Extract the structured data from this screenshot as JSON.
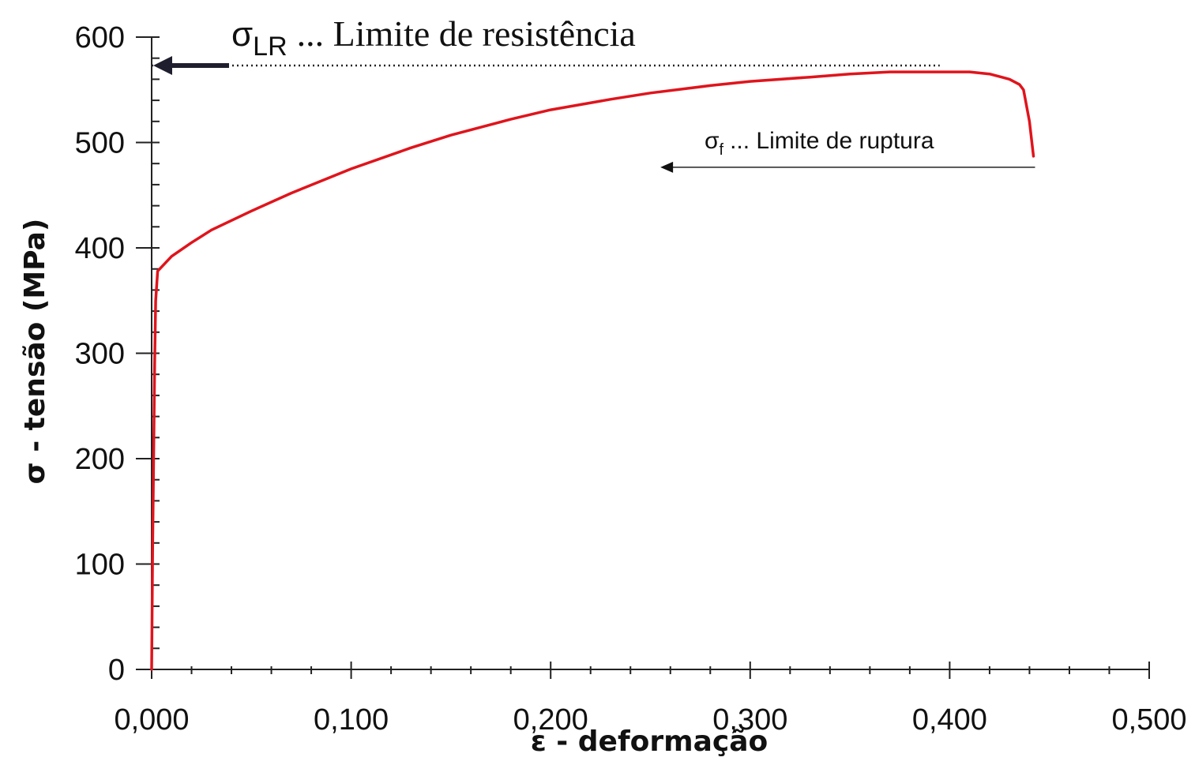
{
  "chart_data": {
    "type": "line",
    "xlabel": "ε - deformação",
    "ylabel": "σ - tensão (MPa)",
    "xlim": [
      0,
      0.5
    ],
    "ylim": [
      0,
      600
    ],
    "x_ticks": [
      "0,000",
      "0,100",
      "0,200",
      "0,300",
      "0,400",
      "0,500"
    ],
    "x_tick_values": [
      0,
      0.1,
      0.2,
      0.3,
      0.4,
      0.5
    ],
    "y_ticks": [
      "0",
      "100",
      "200",
      "300",
      "400",
      "500",
      "600"
    ],
    "y_tick_values": [
      0,
      100,
      200,
      300,
      400,
      500,
      600
    ],
    "series": [
      {
        "color": "#e0141c",
        "x": [
          0,
          0.0005,
          0.001,
          0.0015,
          0.002,
          0.003,
          0.01,
          0.02,
          0.03,
          0.05,
          0.07,
          0.1,
          0.13,
          0.15,
          0.18,
          0.2,
          0.23,
          0.25,
          0.28,
          0.3,
          0.33,
          0.35,
          0.37,
          0.39,
          0.41,
          0.42,
          0.43,
          0.435,
          0.437,
          0.44,
          0.442
        ],
        "y": [
          0,
          120,
          200,
          290,
          350,
          378,
          392,
          405,
          417,
          435,
          452,
          475,
          495,
          507,
          522,
          531,
          541,
          547,
          554,
          558,
          562,
          565,
          567,
          567,
          567,
          565,
          560,
          555,
          550,
          520,
          487
        ]
      }
    ],
    "annotations": [
      {
        "symbol": "σ",
        "subscript": "LR",
        "text": "... Limite de resistência",
        "x": 0.395,
        "y": 573,
        "arrow_to_x": 0
      },
      {
        "symbol": "σ",
        "subscript": "f",
        "text": "... Limite de ruptura",
        "x": 0.442,
        "y": 487,
        "arrow_to_x": 0.255
      }
    ],
    "grid": false,
    "legend": "none"
  }
}
